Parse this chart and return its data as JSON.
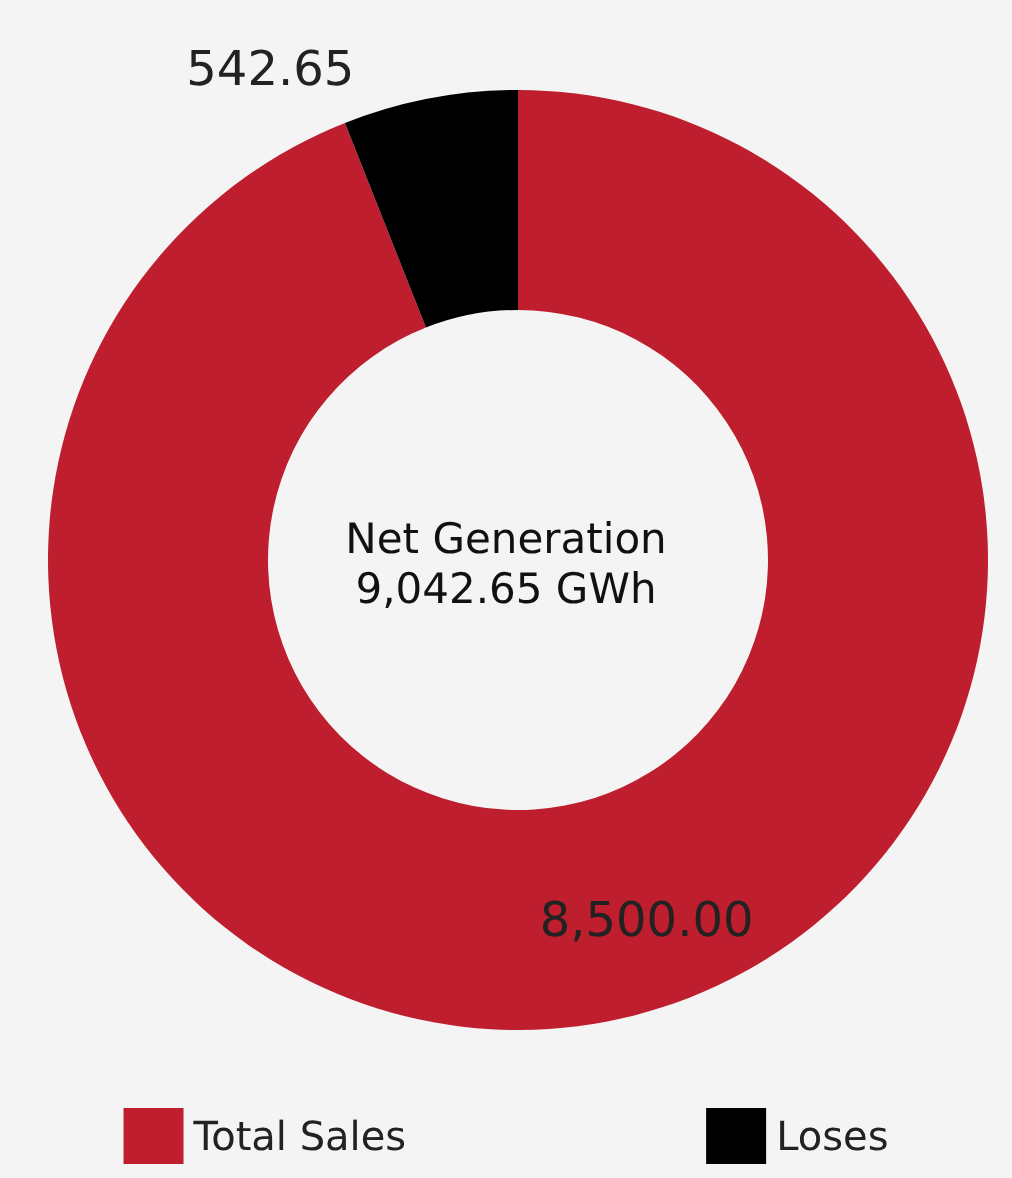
{
  "chart_data": {
    "type": "donut",
    "title": "Net Generation",
    "subtitle": "9,042.65 GWh",
    "categories": [
      "Total Sales",
      "Loses"
    ],
    "values": [
      8500,
      542.65
    ],
    "colors": [
      "#be1e2d",
      "#000000"
    ],
    "value_labels": [
      "8,500.00",
      "542.65"
    ],
    "legend": "bottom"
  }
}
